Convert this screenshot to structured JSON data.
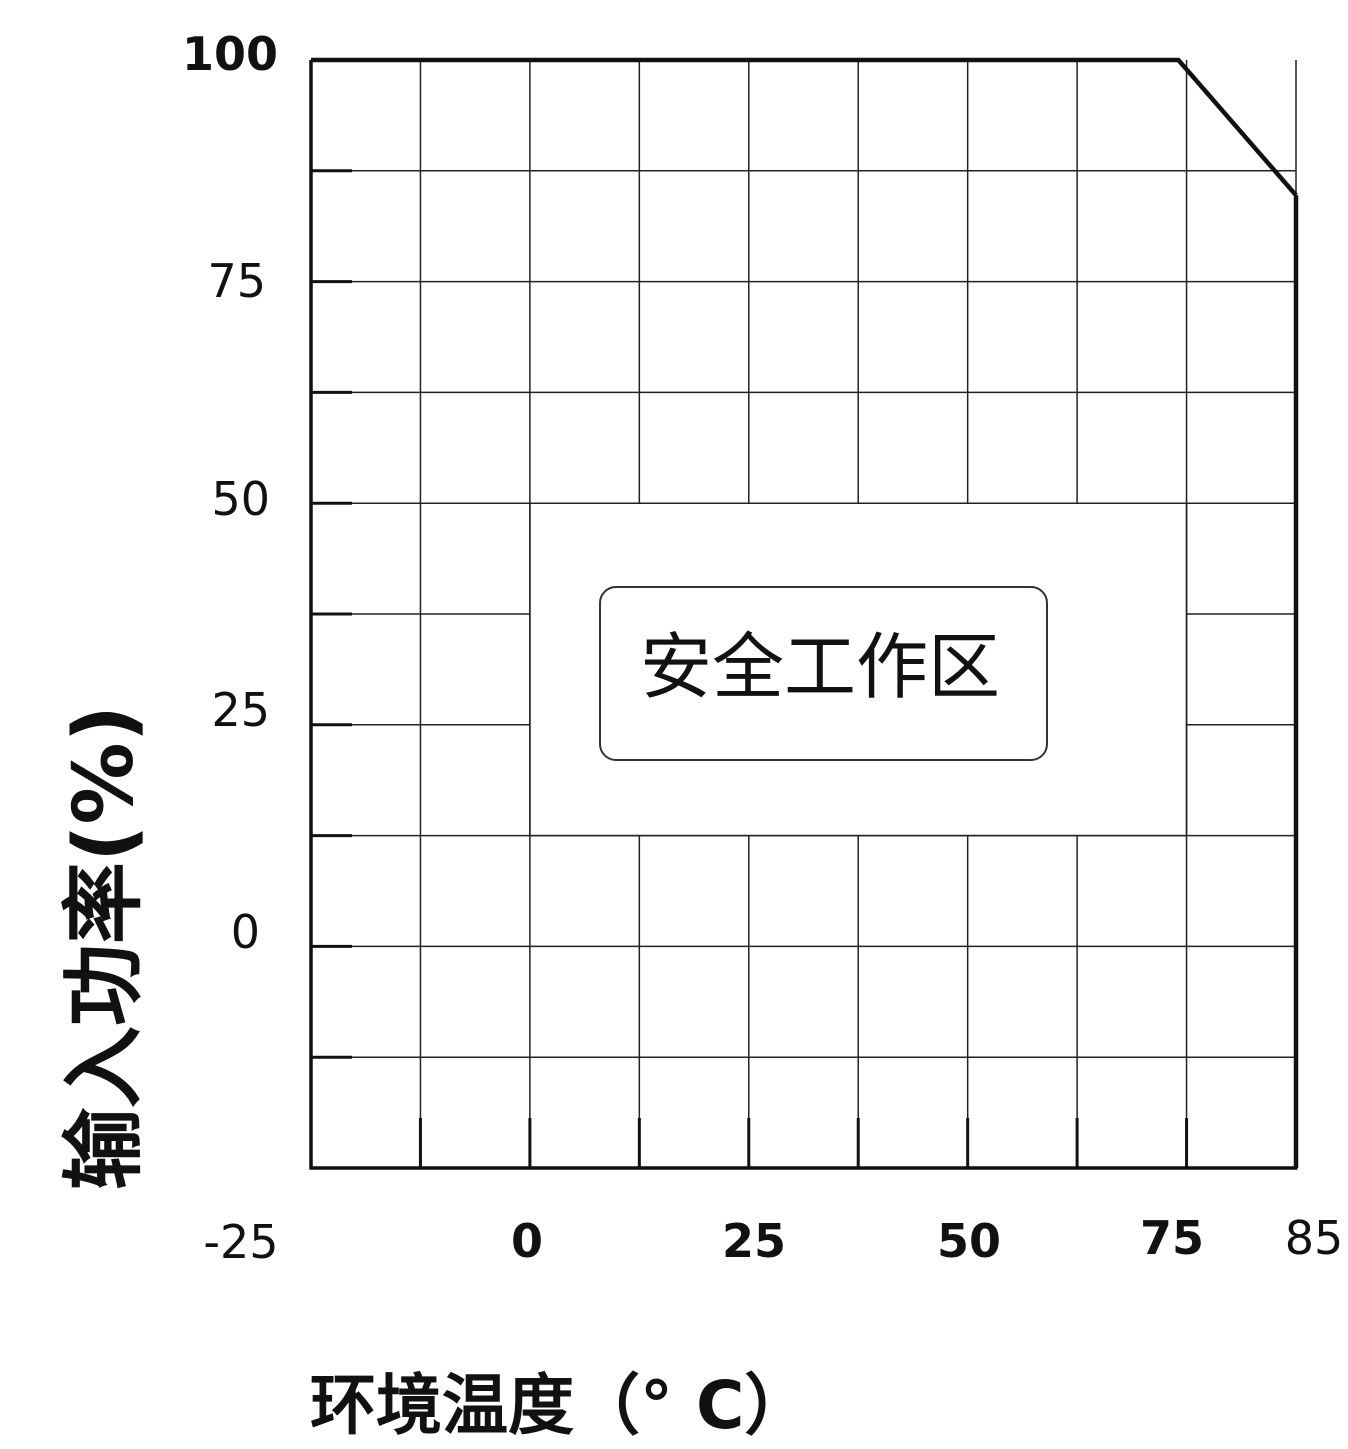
{
  "chart_data": {
    "type": "line",
    "title": "",
    "xlabel": "环境温度（° C）",
    "ylabel": "输入功率(%)",
    "x_tick_labels": [
      "-25",
      "0",
      "25",
      "50",
      "75",
      "85"
    ],
    "y_tick_labels": [
      "100",
      "75",
      "50",
      "25",
      "0"
    ],
    "series": [
      {
        "x": [
          -25,
          72,
          85
        ],
        "y": [
          100,
          100,
          84.7
        ]
      }
    ],
    "annotations": [
      {
        "text": "安全工作区"
      }
    ],
    "grid": true,
    "line_color": "#111111",
    "grid_color": "#222222"
  }
}
